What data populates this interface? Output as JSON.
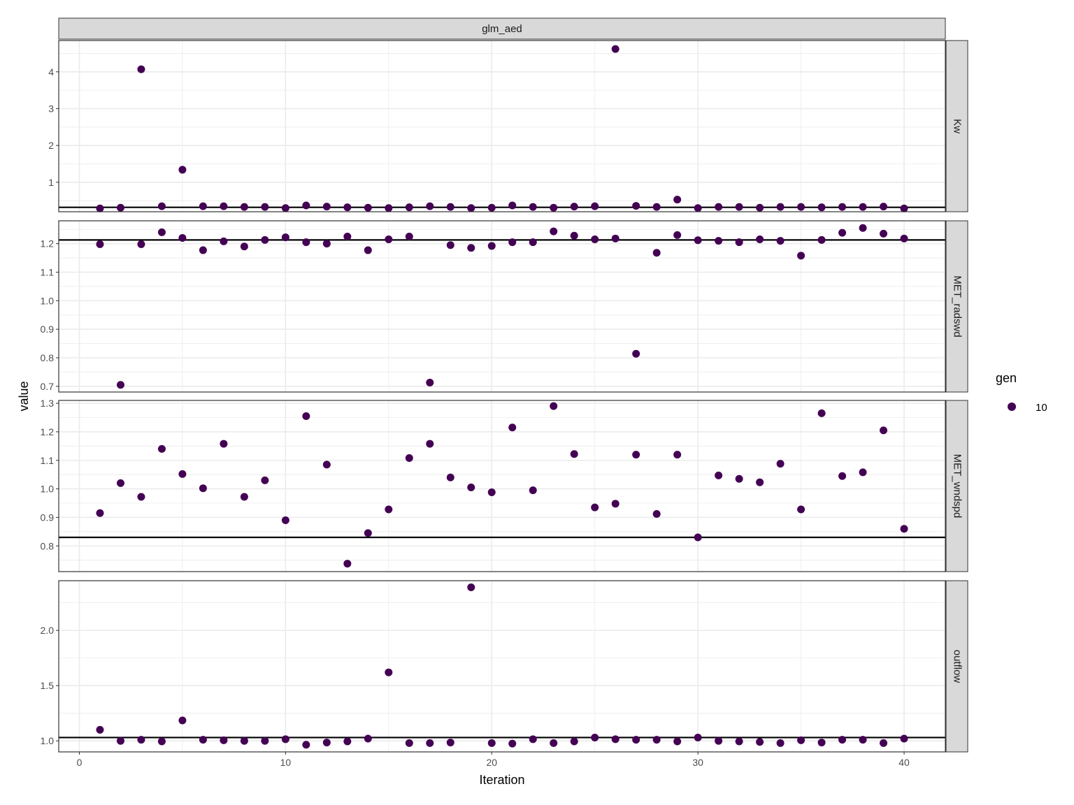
{
  "chart_data": {
    "type": "scatter",
    "column_strip": "glm_aed",
    "xlabel": "Iteration",
    "ylabel": "value",
    "xlim": [
      -1,
      42
    ],
    "x_ticks": [
      0,
      10,
      20,
      30,
      40
    ],
    "x_tick_labels": [
      "0",
      "10",
      "20",
      "30",
      "40"
    ],
    "grid": true,
    "legend": {
      "title": "gen",
      "placement": "right",
      "entries": [
        {
          "label": "10",
          "color": "#440154"
        }
      ]
    },
    "colors": {
      "point": "#440154",
      "reference_line": "#000000",
      "strip_fill": "#d9d9d9",
      "grid": "#ebebeb"
    },
    "x": [
      1,
      2,
      3,
      4,
      5,
      6,
      7,
      8,
      9,
      10,
      11,
      12,
      13,
      14,
      15,
      16,
      17,
      18,
      19,
      20,
      21,
      22,
      23,
      24,
      25,
      26,
      27,
      28,
      29,
      30,
      31,
      32,
      33,
      34,
      35,
      36,
      37,
      38,
      39,
      40
    ],
    "panels": [
      {
        "name": "Kw",
        "ylim": [
          0.2,
          4.85
        ],
        "y_ticks": [
          1,
          2,
          3,
          4
        ],
        "y_tick_labels": [
          "1",
          "2",
          "3",
          "4"
        ],
        "reference": 0.32,
        "values": [
          0.29,
          0.31,
          4.07,
          0.35,
          1.34,
          0.35,
          0.35,
          0.33,
          0.33,
          0.3,
          0.37,
          0.34,
          0.32,
          0.31,
          0.3,
          0.32,
          0.35,
          0.33,
          0.3,
          0.31,
          0.37,
          0.33,
          0.31,
          0.34,
          0.35,
          4.62,
          0.36,
          0.33,
          0.53,
          0.3,
          0.33,
          0.33,
          0.31,
          0.33,
          0.33,
          0.32,
          0.33,
          0.33,
          0.34,
          0.29
        ]
      },
      {
        "name": "MET_radswd",
        "ylim": [
          0.68,
          1.28
        ],
        "y_ticks": [
          0.7,
          0.8,
          0.9,
          1.0,
          1.1,
          1.2
        ],
        "y_tick_labels": [
          "0.7",
          "0.8",
          "0.9",
          "1.0",
          "1.1",
          "1.2"
        ],
        "reference": 1.213,
        "values": [
          1.198,
          0.705,
          1.198,
          1.24,
          1.22,
          1.177,
          1.208,
          1.19,
          1.213,
          1.222,
          1.205,
          1.2,
          1.225,
          1.177,
          1.215,
          1.225,
          0.713,
          1.195,
          1.185,
          1.192,
          1.205,
          1.205,
          1.243,
          1.228,
          1.215,
          1.218,
          0.814,
          1.168,
          1.23,
          1.212,
          1.21,
          1.205,
          1.215,
          1.21,
          1.158,
          1.213,
          1.238,
          1.255,
          1.235,
          1.218
        ]
      },
      {
        "name": "MET_wndspd",
        "ylim": [
          0.71,
          1.31
        ],
        "y_ticks": [
          0.8,
          0.9,
          1.0,
          1.1,
          1.2,
          1.3
        ],
        "y_tick_labels": [
          "0.8",
          "0.9",
          "1.0",
          "1.1",
          "1.2",
          "1.3"
        ],
        "reference": 0.83,
        "values": [
          0.915,
          1.02,
          0.972,
          1.14,
          1.052,
          1.002,
          1.158,
          0.972,
          1.03,
          0.89,
          1.255,
          1.085,
          0.738,
          0.845,
          0.928,
          1.108,
          1.158,
          1.04,
          1.005,
          0.988,
          1.215,
          0.995,
          1.29,
          1.122,
          0.935,
          0.948,
          1.12,
          0.912,
          1.12,
          0.83,
          1.047,
          1.035,
          1.023,
          1.088,
          0.928,
          1.265,
          1.045,
          1.058,
          1.205,
          0.86
        ]
      },
      {
        "name": "outflow",
        "ylim": [
          0.9,
          2.45
        ],
        "y_ticks": [
          1.0,
          1.5,
          2.0
        ],
        "y_tick_labels": [
          "1.0",
          "1.5",
          "2.0"
        ],
        "reference": 1.03,
        "values": [
          1.1,
          1.0,
          1.01,
          0.995,
          1.185,
          1.01,
          1.005,
          1.0,
          1.0,
          1.015,
          0.965,
          0.985,
          0.995,
          1.02,
          1.62,
          0.98,
          0.98,
          0.985,
          2.39,
          0.98,
          0.975,
          1.015,
          0.98,
          0.995,
          1.03,
          1.015,
          1.01,
          1.01,
          0.995,
          1.03,
          1.0,
          0.995,
          0.99,
          0.98,
          1.005,
          0.985,
          1.01,
          1.01,
          0.98,
          1.02
        ]
      }
    ]
  }
}
